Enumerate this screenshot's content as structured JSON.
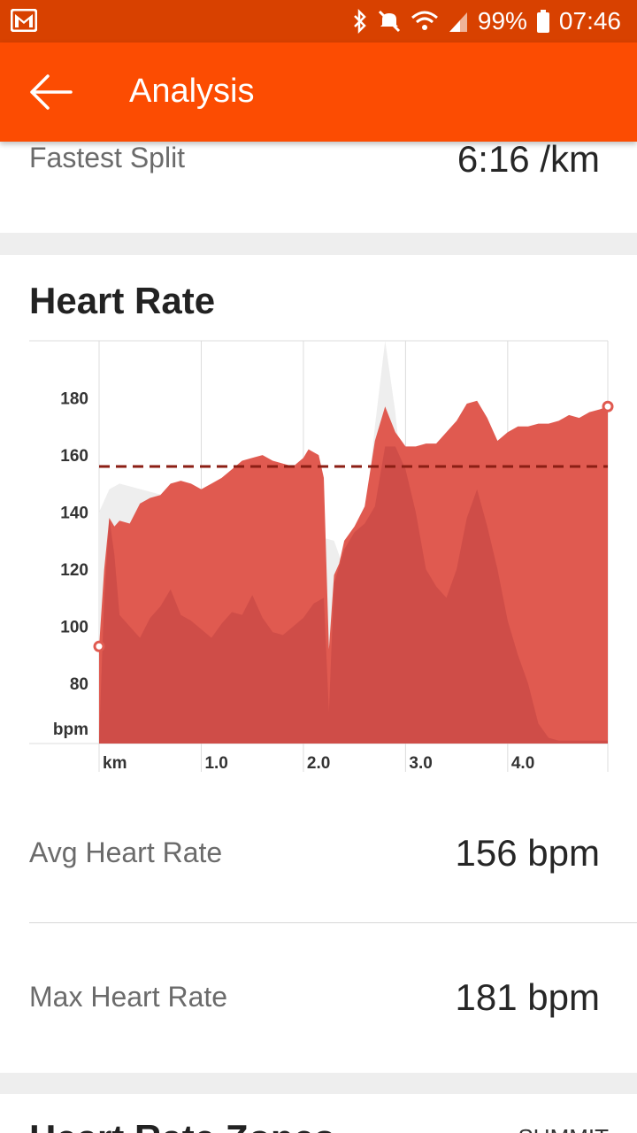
{
  "status_bar": {
    "battery_percent": "99%",
    "time": "07:46",
    "icons": [
      "gmail-icon",
      "bluetooth-icon",
      "mute-icon",
      "wifi-icon",
      "signal-icon",
      "battery-icon"
    ]
  },
  "app_bar": {
    "title": "Analysis",
    "back_icon": "arrow-back-icon"
  },
  "fastest_split": {
    "label": "Fastest Split",
    "value": "6:16 /km"
  },
  "heart_rate": {
    "title": "Heart Rate",
    "avg_label": "Avg Heart Rate",
    "avg_value": "156 bpm",
    "max_label": "Max Heart Rate",
    "max_value": "181 bpm"
  },
  "hr_zones": {
    "title": "Heart Rate Zones",
    "badge": "SUMMIT"
  },
  "chart_data": {
    "type": "area",
    "title": "Heart Rate",
    "x_unit": "km",
    "y_unit": "bpm",
    "x_ticks": [
      "1.0",
      "2.0",
      "3.0",
      "4.0"
    ],
    "y_ticks": [
      "80",
      "100",
      "120",
      "140",
      "160",
      "180"
    ],
    "xlim": [
      0,
      4.98
    ],
    "ylim": [
      59,
      200
    ],
    "average": 156,
    "colors": {
      "hr": "#e05a50",
      "pace": "#cf4d48",
      "elevation": "#eeeeee",
      "avg_line": "#8b1e14"
    },
    "series": [
      {
        "name": "Heart Rate",
        "x": [
          0,
          0.05,
          0.1,
          0.15,
          0.2,
          0.3,
          0.4,
          0.5,
          0.6,
          0.7,
          0.8,
          0.9,
          1.0,
          1.1,
          1.2,
          1.3,
          1.4,
          1.5,
          1.6,
          1.7,
          1.8,
          1.9,
          2.0,
          2.05,
          2.1,
          2.15,
          2.2,
          2.25,
          2.3,
          2.35,
          2.4,
          2.5,
          2.6,
          2.7,
          2.8,
          2.9,
          3.0,
          3.1,
          3.2,
          3.3,
          3.4,
          3.5,
          3.6,
          3.7,
          3.8,
          3.9,
          4.0,
          4.1,
          4.2,
          4.3,
          4.4,
          4.5,
          4.6,
          4.7,
          4.8,
          4.9,
          4.98
        ],
        "y": [
          93,
          120,
          138,
          135,
          137,
          136,
          143,
          145,
          146,
          150,
          151,
          150,
          148,
          150,
          152,
          155,
          158,
          159,
          160,
          158,
          157,
          156,
          159,
          162,
          161,
          160,
          152,
          92,
          118,
          122,
          130,
          135,
          142,
          165,
          177,
          168,
          163,
          163,
          164,
          164,
          168,
          172,
          178,
          179,
          173,
          165,
          168,
          170,
          170,
          171,
          171,
          172,
          174,
          173,
          175,
          176,
          177
        ]
      },
      {
        "name": "Pace",
        "x": [
          0,
          0.05,
          0.1,
          0.15,
          0.2,
          0.3,
          0.4,
          0.5,
          0.6,
          0.7,
          0.8,
          0.9,
          1.0,
          1.1,
          1.2,
          1.3,
          1.4,
          1.5,
          1.6,
          1.7,
          1.8,
          1.9,
          2.0,
          2.1,
          2.2,
          2.25,
          2.3,
          2.4,
          2.5,
          2.6,
          2.7,
          2.8,
          2.9,
          3.0,
          3.1,
          3.2,
          3.3,
          3.4,
          3.5,
          3.6,
          3.7,
          3.8,
          3.9,
          4.0,
          4.1,
          4.2,
          4.3,
          4.4,
          4.5,
          4.6,
          4.7,
          4.8,
          4.9,
          4.98
        ],
        "y": [
          60,
          110,
          138,
          125,
          104,
          100,
          96,
          103,
          107,
          113,
          104,
          102,
          99,
          96,
          101,
          105,
          104,
          111,
          103,
          98,
          97,
          100,
          103,
          108,
          110,
          70,
          115,
          127,
          133,
          136,
          142,
          163,
          163,
          155,
          140,
          120,
          114,
          110,
          120,
          138,
          148,
          135,
          120,
          102,
          90,
          80,
          66,
          61,
          60,
          60,
          60,
          60,
          60,
          60
        ]
      },
      {
        "name": "Elevation",
        "x": [
          0,
          0.1,
          0.2,
          2.3,
          2.4,
          2.5,
          2.6,
          2.7,
          2.8,
          2.9,
          3.0,
          4.98
        ],
        "y": [
          140,
          148,
          150,
          130,
          120,
          125,
          135,
          170,
          200,
          175,
          140,
          140
        ]
      }
    ]
  }
}
